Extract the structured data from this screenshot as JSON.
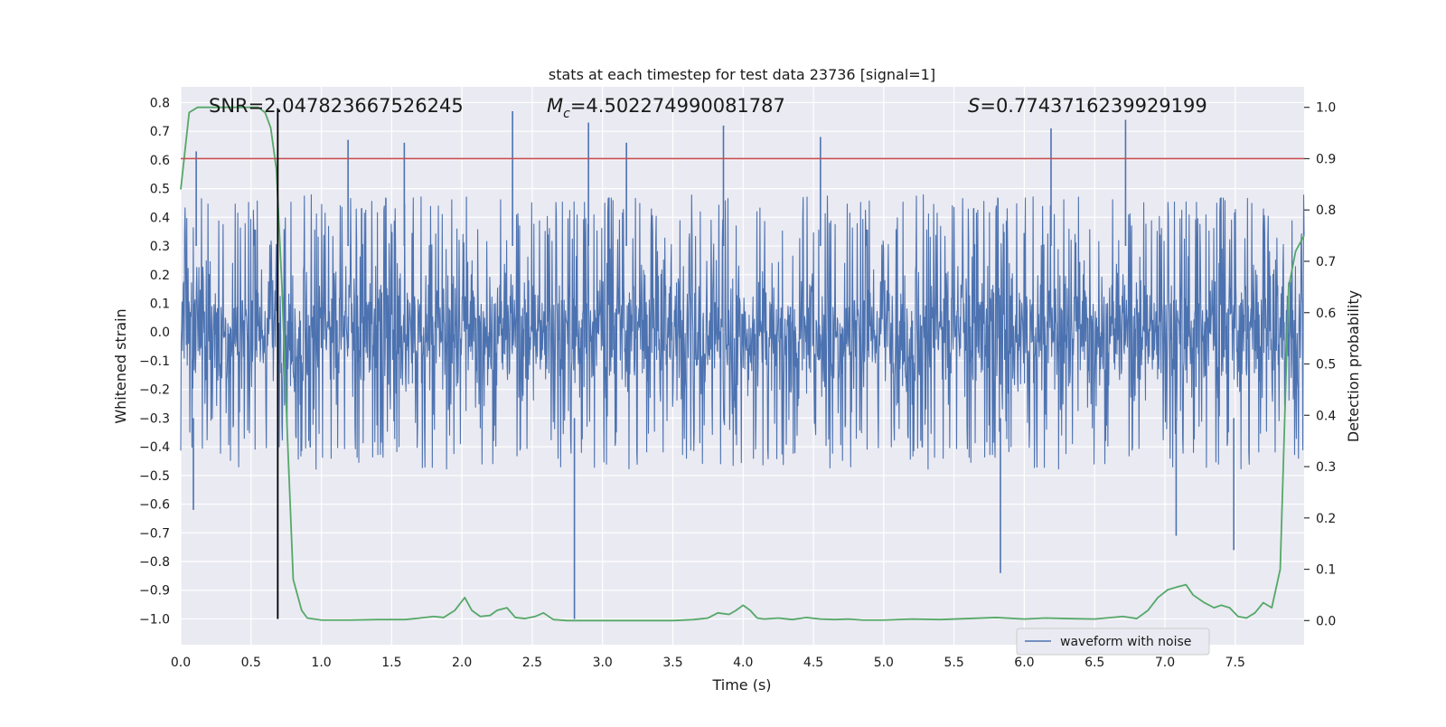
{
  "chart_data": {
    "type": "line",
    "title": "stats at each timestep for test data 23736 [signal=1]",
    "xlabel": "Time (s)",
    "ylabel": "Whitened strain",
    "ylabel_right": "Detection probability",
    "xlim": [
      0.0,
      7.99
    ],
    "ylim": [
      -1.09,
      0.855
    ],
    "ylim_right": [
      -0.047,
      1.04
    ],
    "x_ticks": [
      "0.0",
      "0.5",
      "1.0",
      "1.5",
      "2.0",
      "2.5",
      "3.0",
      "3.5",
      "4.0",
      "4.5",
      "5.0",
      "5.5",
      "6.0",
      "6.5",
      "7.0",
      "7.5"
    ],
    "y_ticks": [
      "0.8",
      "0.7",
      "0.6",
      "0.5",
      "0.4",
      "0.3",
      "0.2",
      "0.1",
      "0.0",
      "-0.1",
      "-0.2",
      "-0.3",
      "-0.4",
      "-0.5",
      "-0.6",
      "-0.7",
      "-0.8",
      "-0.9",
      "-1.0"
    ],
    "y_ticks_right": [
      "1.0",
      "0.9",
      "0.8",
      "0.7",
      "0.6",
      "0.5",
      "0.4",
      "0.3",
      "0.2",
      "0.1",
      "0.0"
    ],
    "grid": true,
    "annotations": {
      "snr": "SNR=2.047823667526245",
      "mc_symbol": "M",
      "mc_sub": "c",
      "mc_value": "=4.502274990081787",
      "s_symbol": "S",
      "s_value": "=0.7743716239929199"
    },
    "threshold_right": 0.9,
    "marker_time": 0.69,
    "series": [
      {
        "name": "waveform with noise",
        "axis": "left",
        "color": "#4c72b0",
        "envelope_note": "dense noisy strain, typical range -0.45..0.45, spikes to ~0.77 and ~-1.0",
        "spikes": [
          {
            "x": 0.11,
            "y": 0.63
          },
          {
            "x": 0.09,
            "y": -0.62
          },
          {
            "x": 1.19,
            "y": 0.67
          },
          {
            "x": 1.59,
            "y": 0.66
          },
          {
            "x": 2.36,
            "y": 0.77
          },
          {
            "x": 2.8,
            "y": -1.0
          },
          {
            "x": 2.9,
            "y": 0.73
          },
          {
            "x": 3.17,
            "y": 0.66
          },
          {
            "x": 3.86,
            "y": 0.72
          },
          {
            "x": 4.55,
            "y": 0.68
          },
          {
            "x": 5.83,
            "y": -0.84
          },
          {
            "x": 6.19,
            "y": 0.71
          },
          {
            "x": 6.72,
            "y": 0.74
          },
          {
            "x": 7.08,
            "y": -0.71
          },
          {
            "x": 7.49,
            "y": -0.76
          }
        ]
      },
      {
        "name": "",
        "axis": "right",
        "color": "#55a868",
        "x": [
          0.0,
          0.06,
          0.12,
          0.2,
          0.3,
          0.4,
          0.5,
          0.55,
          0.6,
          0.64,
          0.68,
          0.72,
          0.76,
          0.8,
          0.86,
          0.9,
          1.0,
          1.2,
          1.4,
          1.6,
          1.7,
          1.8,
          1.87,
          1.95,
          2.02,
          2.07,
          2.13,
          2.2,
          2.25,
          2.32,
          2.38,
          2.45,
          2.52,
          2.58,
          2.65,
          2.75,
          2.9,
          3.1,
          3.3,
          3.5,
          3.65,
          3.75,
          3.82,
          3.9,
          3.95,
          4.0,
          4.05,
          4.1,
          4.15,
          4.25,
          4.35,
          4.45,
          4.55,
          4.65,
          4.75,
          4.85,
          5.0,
          5.2,
          5.4,
          5.6,
          5.8,
          6.0,
          6.15,
          6.3,
          6.5,
          6.7,
          6.8,
          6.88,
          6.95,
          7.02,
          7.08,
          7.15,
          7.2,
          7.28,
          7.35,
          7.4,
          7.46,
          7.52,
          7.58,
          7.64,
          7.7,
          7.76,
          7.82,
          7.88,
          7.93,
          7.99
        ],
        "y": [
          0.84,
          0.99,
          1.0,
          1.0,
          1.0,
          1.0,
          1.0,
          1.0,
          0.99,
          0.96,
          0.88,
          0.65,
          0.35,
          0.08,
          0.02,
          0.005,
          0.001,
          0.001,
          0.002,
          0.002,
          0.005,
          0.008,
          0.006,
          0.02,
          0.045,
          0.02,
          0.008,
          0.01,
          0.02,
          0.025,
          0.006,
          0.004,
          0.008,
          0.015,
          0.002,
          0.0,
          0.0,
          0.0,
          0.0,
          0.0,
          0.002,
          0.005,
          0.015,
          0.012,
          0.02,
          0.03,
          0.02,
          0.005,
          0.003,
          0.005,
          0.002,
          0.006,
          0.003,
          0.002,
          0.003,
          0.001,
          0.001,
          0.003,
          0.002,
          0.004,
          0.006,
          0.003,
          0.005,
          0.004,
          0.003,
          0.008,
          0.004,
          0.02,
          0.045,
          0.06,
          0.065,
          0.07,
          0.05,
          0.035,
          0.025,
          0.03,
          0.025,
          0.008,
          0.005,
          0.015,
          0.035,
          0.025,
          0.1,
          0.65,
          0.72,
          0.75
        ]
      }
    ],
    "legend": {
      "placement": "lower-right",
      "entries": [
        "waveform with noise"
      ]
    },
    "colors": {
      "background": "#eaeaf2",
      "grid": "#ffffff",
      "threshold": "#c44e52",
      "marker": "#000000"
    }
  }
}
